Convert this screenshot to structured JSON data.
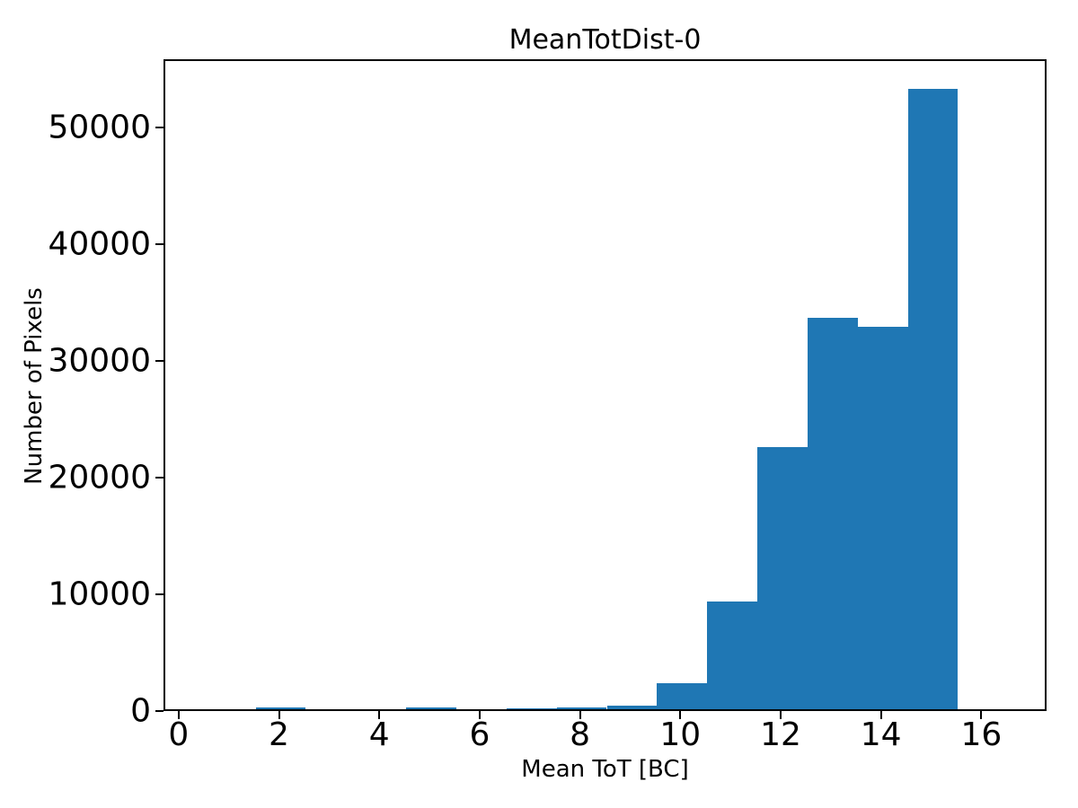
{
  "figure": {
    "title": "MeanTotDist-0",
    "background_color": "#ffffff",
    "text_color": "#000000"
  },
  "chart_data": {
    "type": "bar",
    "subtype": "histogram",
    "title": "MeanTotDist-0",
    "xlabel": "Mean ToT [BC]",
    "ylabel": "Number of Pixels",
    "bar_color": "#1f77b4",
    "bin_edges": [
      0.5,
      1.5,
      2.5,
      3.5,
      4.5,
      5.5,
      6.5,
      7.5,
      8.5,
      9.5,
      10.5,
      11.5,
      12.5,
      13.5,
      14.5,
      15.5,
      16.5
    ],
    "bin_centers": [
      1,
      2,
      3,
      4,
      5,
      6,
      7,
      8,
      9,
      10,
      11,
      12,
      13,
      14,
      15,
      16
    ],
    "values": [
      0,
      160,
      0,
      0,
      160,
      0,
      110,
      120,
      310,
      2240,
      9210,
      22490,
      33540,
      32770,
      53200,
      0
    ],
    "xlim": [
      -0.3,
      17.3
    ],
    "ylim": [
      0,
      55860
    ],
    "xticks": [
      0,
      2,
      4,
      6,
      8,
      10,
      12,
      14,
      16
    ],
    "yticks": [
      0,
      10000,
      20000,
      30000,
      40000,
      50000
    ],
    "grid": false,
    "legend_position": "none"
  }
}
